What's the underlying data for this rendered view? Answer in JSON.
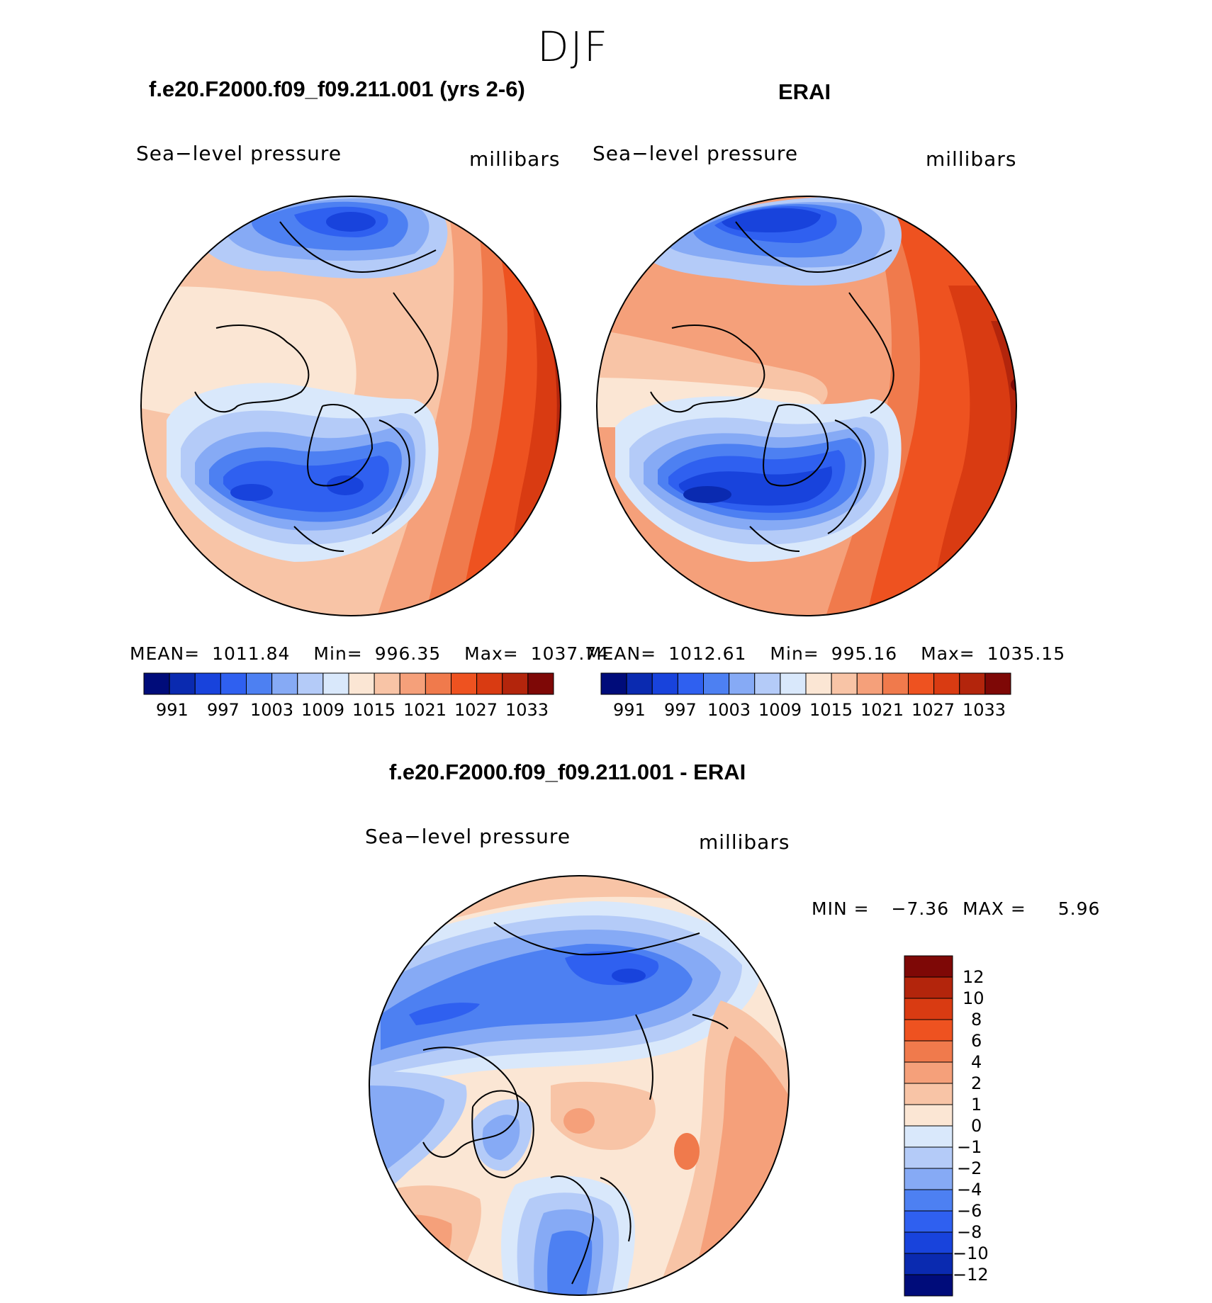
{
  "figure": {
    "season": "DJF"
  },
  "panels": [
    {
      "id": "model",
      "title": "f.e20.F2000.f09_f09.211.001 (yrs 2-6)",
      "left_label": "Sea−level pressure",
      "right_label": "millibars",
      "stats": {
        "mean_label": "MEAN=",
        "mean": "1011.84",
        "min_label": "Min=",
        "min": "996.35",
        "max_label": "Max=",
        "max": "1037.74"
      },
      "colorbar_ticks": [
        "991",
        "997",
        "1003",
        "1009",
        "1015",
        "1021",
        "1027",
        "1033"
      ]
    },
    {
      "id": "obs",
      "title": "ERAI",
      "left_label": "Sea−level pressure",
      "right_label": "millibars",
      "stats": {
        "mean_label": "MEAN=",
        "mean": "1012.61",
        "min_label": "Min=",
        "min": "995.16",
        "max_label": "Max=",
        "max": "1035.15"
      },
      "colorbar_ticks": [
        "991",
        "997",
        "1003",
        "1009",
        "1015",
        "1021",
        "1027",
        "1033"
      ]
    }
  ],
  "difference": {
    "title": "f.e20.F2000.f09_f09.211.001 - ERAI",
    "left_label": "Sea−level pressure",
    "right_label": "millibars",
    "stats": {
      "min_label": "MIN =",
      "min": "−7.36",
      "max_label": "MAX =",
      "max": "5.96"
    },
    "colorbar_ticks": [
      "12",
      "10",
      "8",
      "6",
      "4",
      "2",
      "1",
      "0",
      "−1",
      "−2",
      "−4",
      "−6",
      "−8",
      "−10",
      "−12"
    ]
  },
  "colors": {
    "abs_scale": [
      "#000c7a",
      "#0a2ab0",
      "#1843dc",
      "#2f60f0",
      "#4d80f2",
      "#86aaf5",
      "#b4cbf8",
      "#d9e8fb",
      "#fbe6d4",
      "#f8c4a6",
      "#f5a07a",
      "#f07a4c",
      "#ee5220",
      "#d93b12",
      "#b3250c",
      "#7e0806"
    ],
    "diff_scale": [
      "#7e0806",
      "#b3250c",
      "#d93b12",
      "#ee5220",
      "#f07a4c",
      "#f5a07a",
      "#f8c4a6",
      "#fbe6d4",
      "#d9e8fb",
      "#b4cbf8",
      "#86aaf5",
      "#4d80f2",
      "#2f60f0",
      "#1843dc",
      "#0a2ab0",
      "#000c7a"
    ]
  }
}
